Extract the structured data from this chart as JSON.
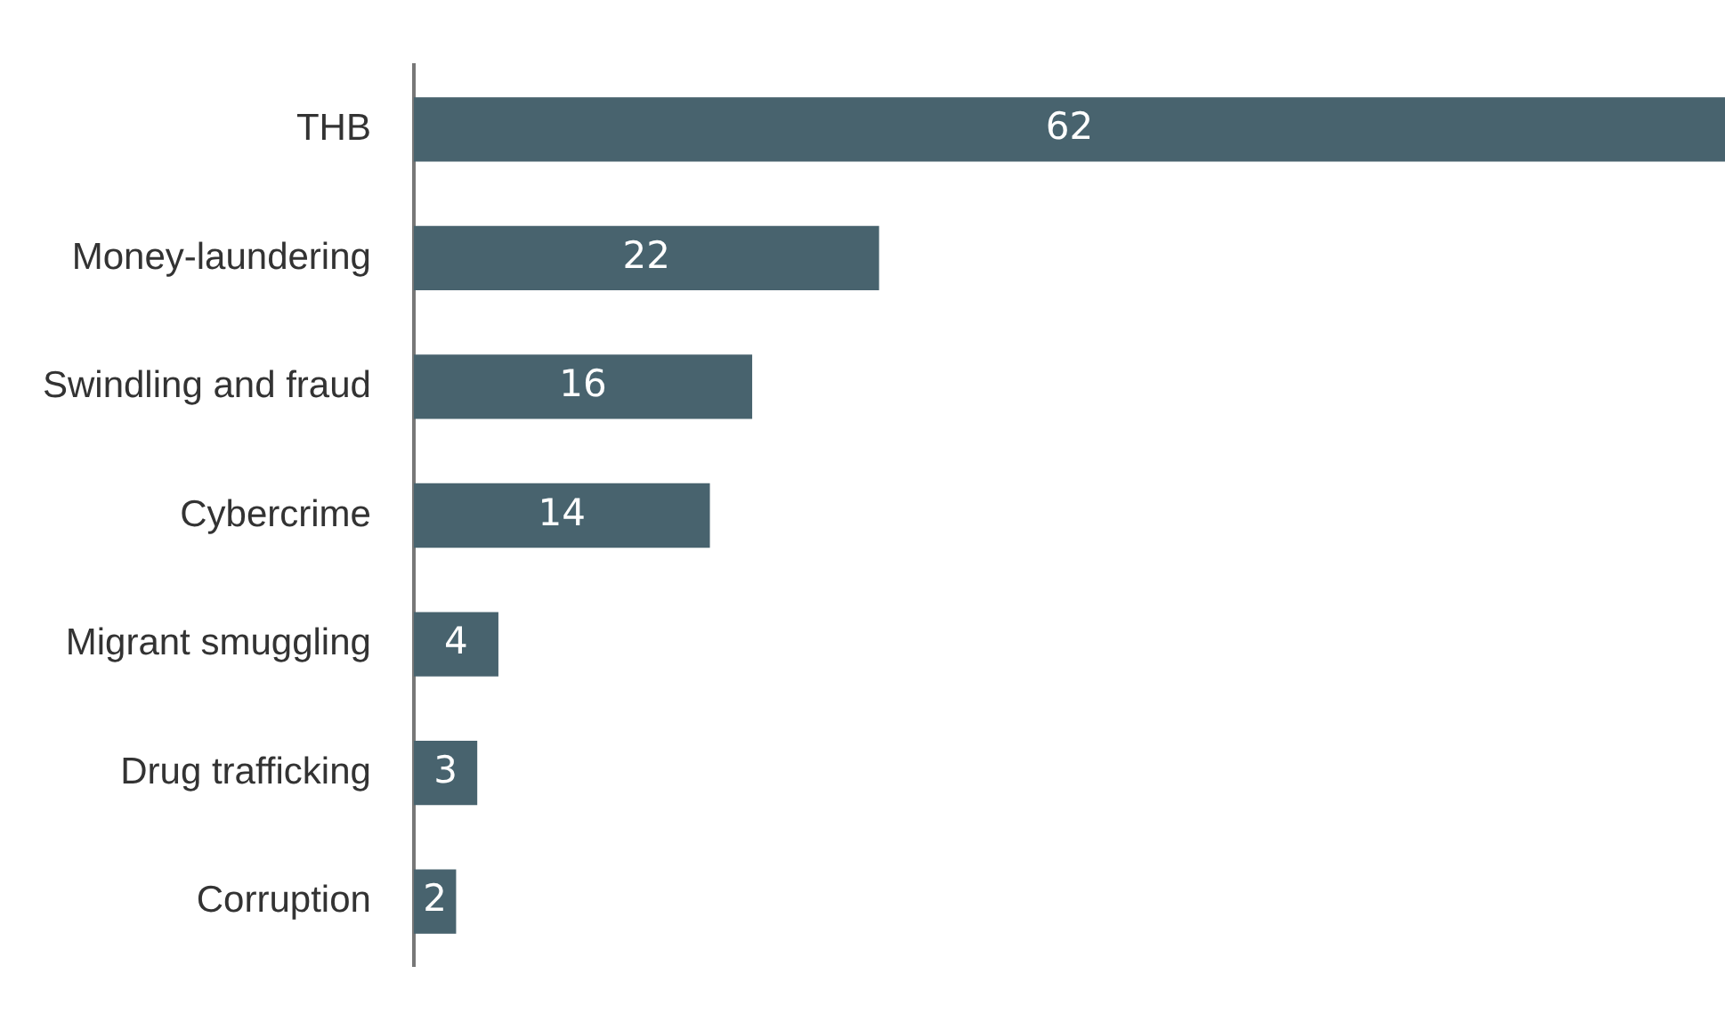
{
  "chart_data": {
    "type": "bar",
    "orientation": "horizontal",
    "categories": [
      "THB",
      "Money-laundering",
      "Swindling and fraud",
      "Cybercrime",
      "Migrant smuggling",
      "Drug trafficking",
      "Corruption"
    ],
    "values": [
      62,
      22,
      16,
      14,
      4,
      3,
      2
    ],
    "color": "#48636e",
    "data_labels": true,
    "grid": false,
    "legend": false
  }
}
